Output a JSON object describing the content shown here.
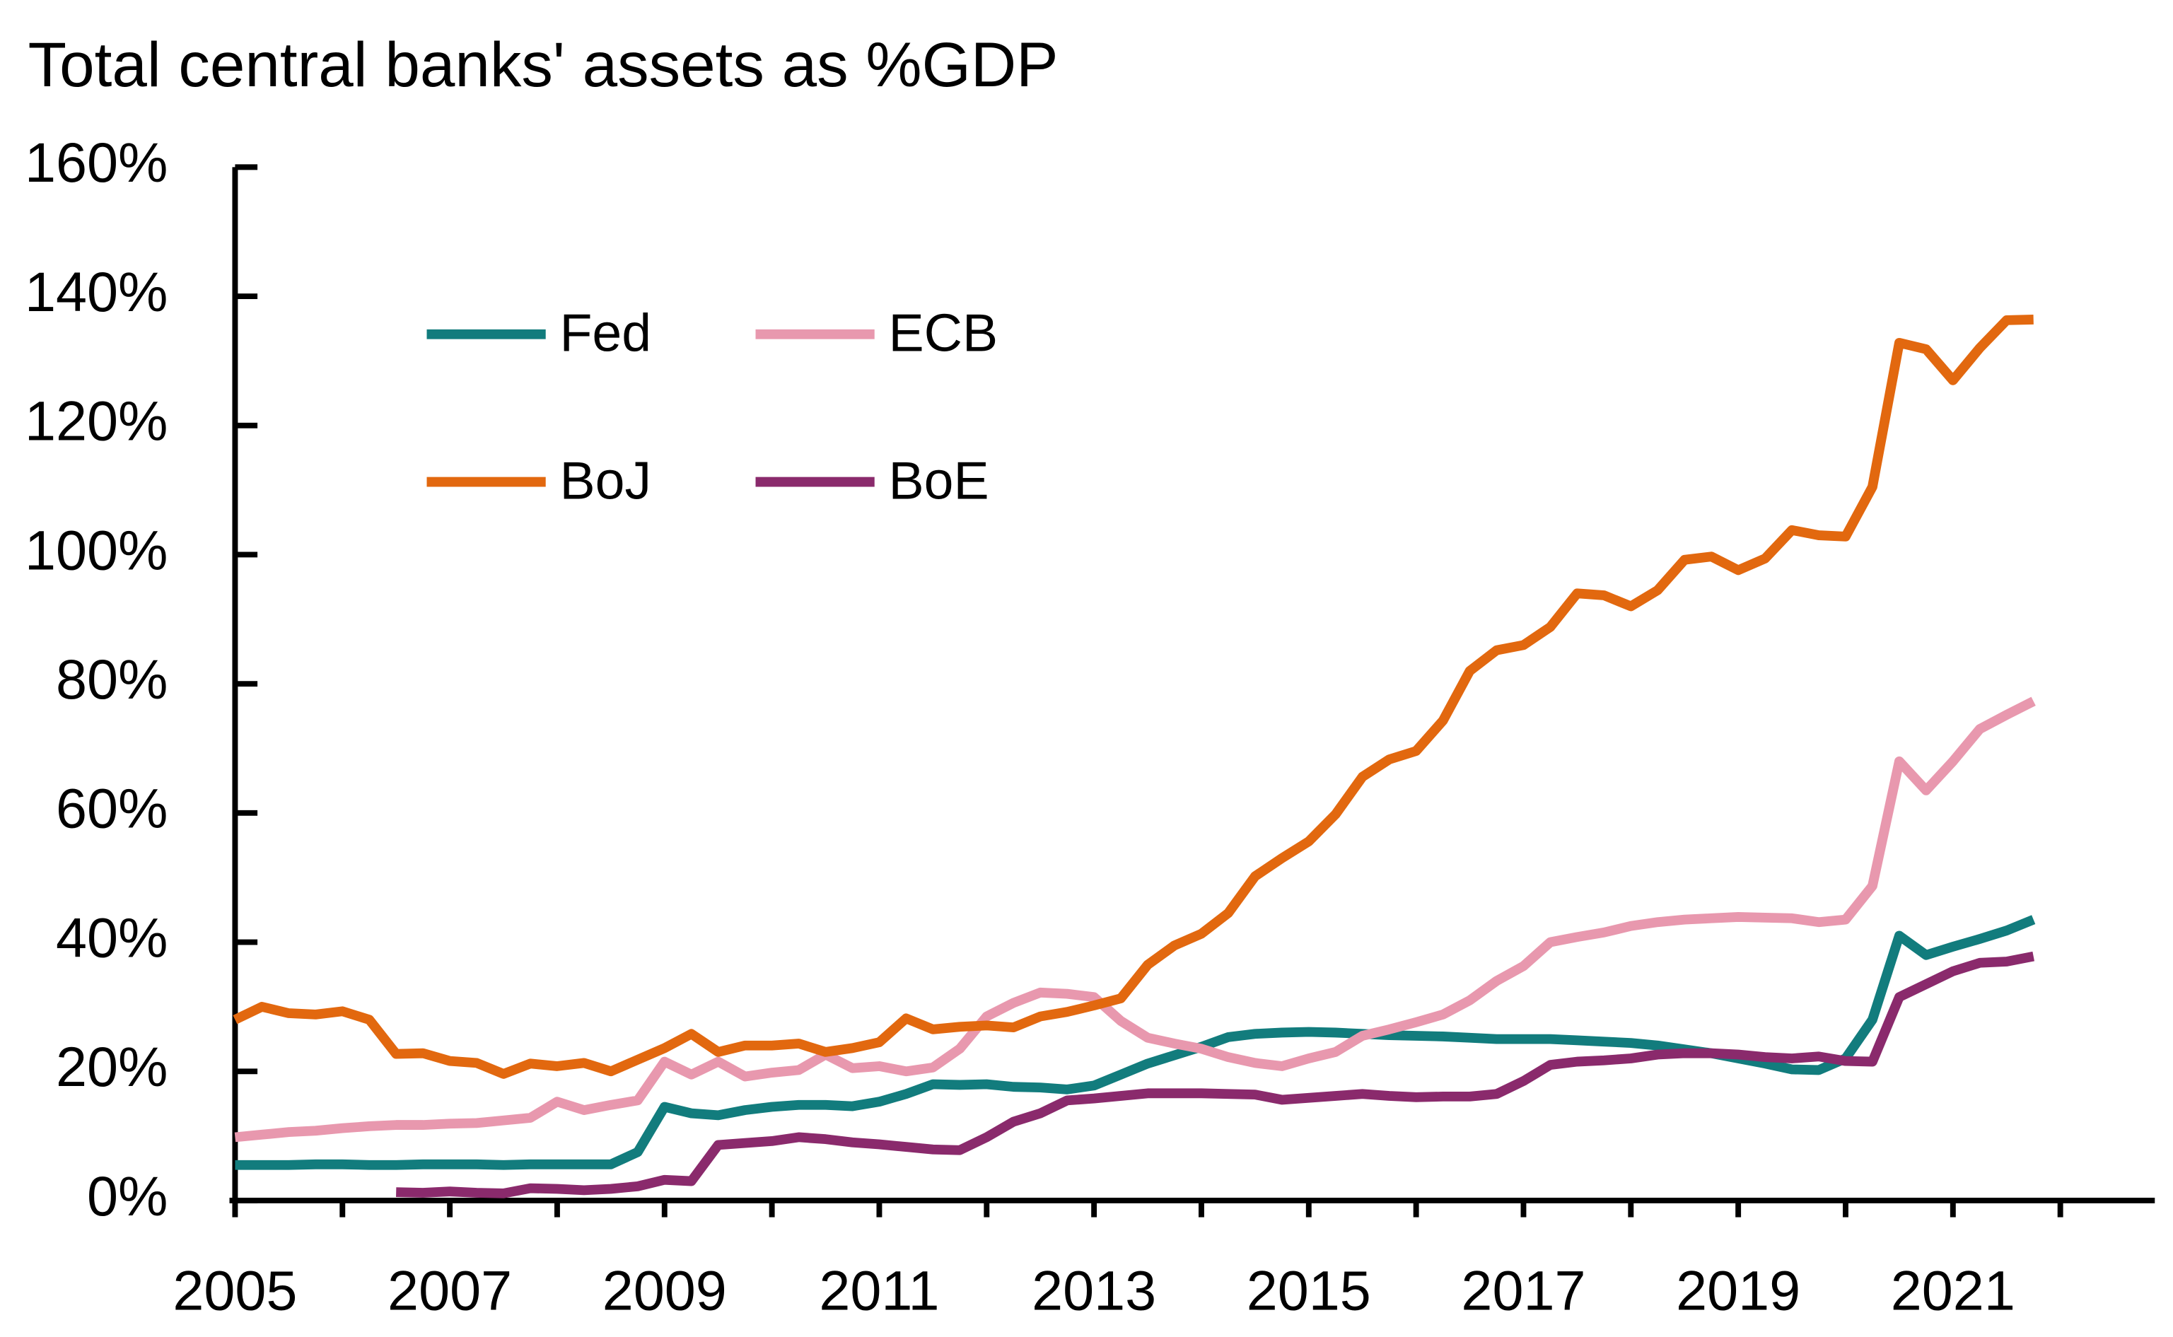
{
  "chart_data": {
    "type": "line",
    "title": "Total central banks' assets as %GDP",
    "x": [
      2005,
      2005.25,
      2005.5,
      2005.75,
      2006,
      2006.25,
      2006.5,
      2006.75,
      2007,
      2007.25,
      2007.5,
      2007.75,
      2008,
      2008.25,
      2008.5,
      2008.75,
      2009,
      2009.25,
      2009.5,
      2009.75,
      2010,
      2010.25,
      2010.5,
      2010.75,
      2011,
      2011.25,
      2011.5,
      2011.75,
      2012,
      2012.25,
      2012.5,
      2012.75,
      2013,
      2013.25,
      2013.5,
      2013.75,
      2014,
      2014.25,
      2014.5,
      2014.75,
      2015,
      2015.25,
      2015.5,
      2015.75,
      2016,
      2016.25,
      2016.5,
      2016.75,
      2017,
      2017.25,
      2017.5,
      2017.75,
      2018,
      2018.25,
      2018.5,
      2018.75,
      2019,
      2019.25,
      2019.5,
      2019.75,
      2020,
      2020.25,
      2020.5,
      2020.75,
      2021,
      2021.25,
      2021.5,
      2021.75
    ],
    "series": [
      {
        "name": "Fed",
        "color": "#127c7d",
        "values": [
          5.5,
          5.5,
          5.5,
          5.6,
          5.6,
          5.5,
          5.5,
          5.6,
          5.6,
          5.6,
          5.5,
          5.6,
          5.6,
          5.6,
          5.6,
          7.5,
          14.5,
          13.5,
          13.2,
          14,
          14.5,
          14.8,
          14.8,
          14.6,
          15.3,
          16.5,
          18,
          17.9,
          18,
          17.6,
          17.5,
          17.2,
          17.8,
          19.5,
          21.2,
          22.5,
          23.8,
          25.3,
          25.8,
          26,
          26.1,
          26,
          25.8,
          25.6,
          25.5,
          25.4,
          25.2,
          25,
          25,
          25,
          24.8,
          24.6,
          24.4,
          24,
          23.4,
          22.8,
          22,
          21.2,
          20.3,
          20.2,
          22,
          28,
          41,
          38,
          39.3,
          40.5,
          41.8,
          43.5
        ]
      },
      {
        "name": "ECB",
        "color": "#e898ae",
        "values": [
          9.8,
          10.2,
          10.6,
          10.8,
          11.2,
          11.5,
          11.7,
          11.7,
          11.9,
          12,
          12.4,
          12.8,
          15.3,
          14,
          14.8,
          15.5,
          21.5,
          19.5,
          21.5,
          19.2,
          19.8,
          20.2,
          22.6,
          20.5,
          20.8,
          20,
          20.6,
          23.5,
          28.5,
          30.6,
          32.2,
          32,
          31.5,
          27.8,
          25.2,
          24.3,
          23.5,
          22.2,
          21.3,
          20.8,
          22,
          23,
          25.5,
          26.5,
          27.6,
          28.8,
          31,
          34,
          36.3,
          40,
          40.8,
          41.5,
          42.5,
          43.1,
          43.5,
          43.7,
          43.9,
          43.8,
          43.7,
          43.1,
          43.5,
          48.7,
          68,
          63.5,
          68,
          73,
          75.2,
          77.3
        ]
      },
      {
        "name": "BoJ",
        "color": "#e2680f",
        "values": [
          28,
          30,
          29,
          28.8,
          29.3,
          28,
          22.7,
          22.8,
          21.6,
          21.3,
          19.6,
          21.2,
          20.8,
          21.3,
          20,
          21.8,
          23.6,
          25.8,
          23,
          24,
          24,
          24.3,
          23,
          23.6,
          24.5,
          28.2,
          26.5,
          26.9,
          27.1,
          26.8,
          28.5,
          29.2,
          30.2,
          31.3,
          36.5,
          39.5,
          41.3,
          44.5,
          50.2,
          53,
          55.6,
          59.8,
          65.6,
          68.3,
          69.6,
          74.3,
          82,
          85.2,
          86,
          88.8,
          94,
          93.7,
          92,
          94.5,
          99.2,
          99.7,
          97.6,
          99.4,
          103.8,
          103,
          102.8,
          110.5,
          132.8,
          131.8,
          127,
          132,
          136.3,
          136.4
        ]
      },
      {
        "name": "BoE",
        "color": "#8a2a6c",
        "values": [
          null,
          null,
          null,
          null,
          null,
          null,
          1.3,
          1.2,
          1.4,
          1.2,
          1.1,
          1.9,
          1.8,
          1.6,
          1.8,
          2.2,
          3.2,
          3,
          8.6,
          8.9,
          9.2,
          9.8,
          9.5,
          9,
          8.7,
          8.3,
          7.9,
          7.8,
          9.8,
          12.2,
          13.5,
          15.5,
          15.8,
          16.2,
          16.6,
          16.6,
          16.6,
          16.5,
          16.4,
          15.6,
          15.9,
          16.2,
          16.5,
          16.2,
          16,
          16.1,
          16.1,
          16.5,
          18.5,
          21,
          21.5,
          21.7,
          22,
          22.6,
          22.8,
          22.8,
          22.6,
          22.2,
          22,
          22.3,
          21.6,
          21.5,
          31.5,
          33.5,
          35.5,
          36.8,
          37,
          37.8
        ]
      }
    ],
    "xlim": [
      2005,
      2022.88
    ],
    "xticks": [
      2005,
      2007,
      2009,
      2011,
      2013,
      2015,
      2017,
      2019,
      2021
    ],
    "xminor_ticks": [
      2006,
      2008,
      2010,
      2012,
      2014,
      2016,
      2018,
      2020,
      2022
    ],
    "ylim": [
      0,
      160
    ],
    "yticks": [
      {
        "value": 0,
        "label": "0%"
      },
      {
        "value": 20,
        "label": "20%"
      },
      {
        "value": 40,
        "label": "40%"
      },
      {
        "value": 60,
        "label": "60%"
      },
      {
        "value": 80,
        "label": "80%"
      },
      {
        "value": 100,
        "label": "100%"
      },
      {
        "value": 120,
        "label": "120%"
      },
      {
        "value": 140,
        "label": "140%"
      },
      {
        "value": 160,
        "label": "160%"
      }
    ],
    "grid": false
  }
}
